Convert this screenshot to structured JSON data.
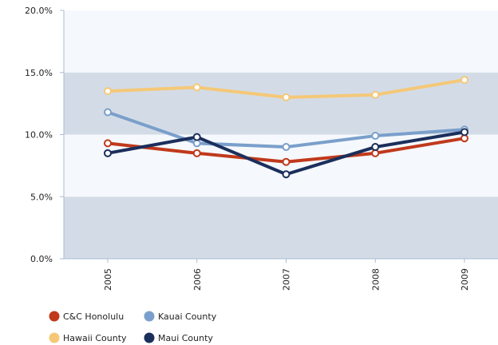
{
  "chart_data": {
    "type": "line",
    "title": "",
    "xlabel": "",
    "ylabel": "",
    "categories": [
      "2005",
      "2006",
      "2007",
      "2008",
      "2009"
    ],
    "y_ticks": [
      "0.0%",
      "5.0%",
      "10.0%",
      "15.0%",
      "20.0%"
    ],
    "ylim": [
      0,
      20
    ],
    "grid": "alternating horizontal bands",
    "legend_position": "bottom-left",
    "series": [
      {
        "name": "C&C Honolulu",
        "color": "#C0391B",
        "values": [
          9.3,
          8.5,
          7.8,
          8.5,
          9.7
        ]
      },
      {
        "name": "Kauai County",
        "color": "#7A9FCB",
        "values": [
          11.8,
          9.3,
          9.0,
          9.9,
          10.4
        ]
      },
      {
        "name": "Hawaii County",
        "color": "#F5C878",
        "values": [
          13.5,
          13.8,
          13.0,
          13.2,
          14.4
        ]
      },
      {
        "name": "Maui County",
        "color": "#1B2F5C",
        "values": [
          8.5,
          9.8,
          6.8,
          9.0,
          10.2
        ]
      }
    ]
  },
  "colors": {
    "band_dark": "#D3DCE6",
    "band_light": "#F5F8FC",
    "axis": "#A9BCD6"
  }
}
